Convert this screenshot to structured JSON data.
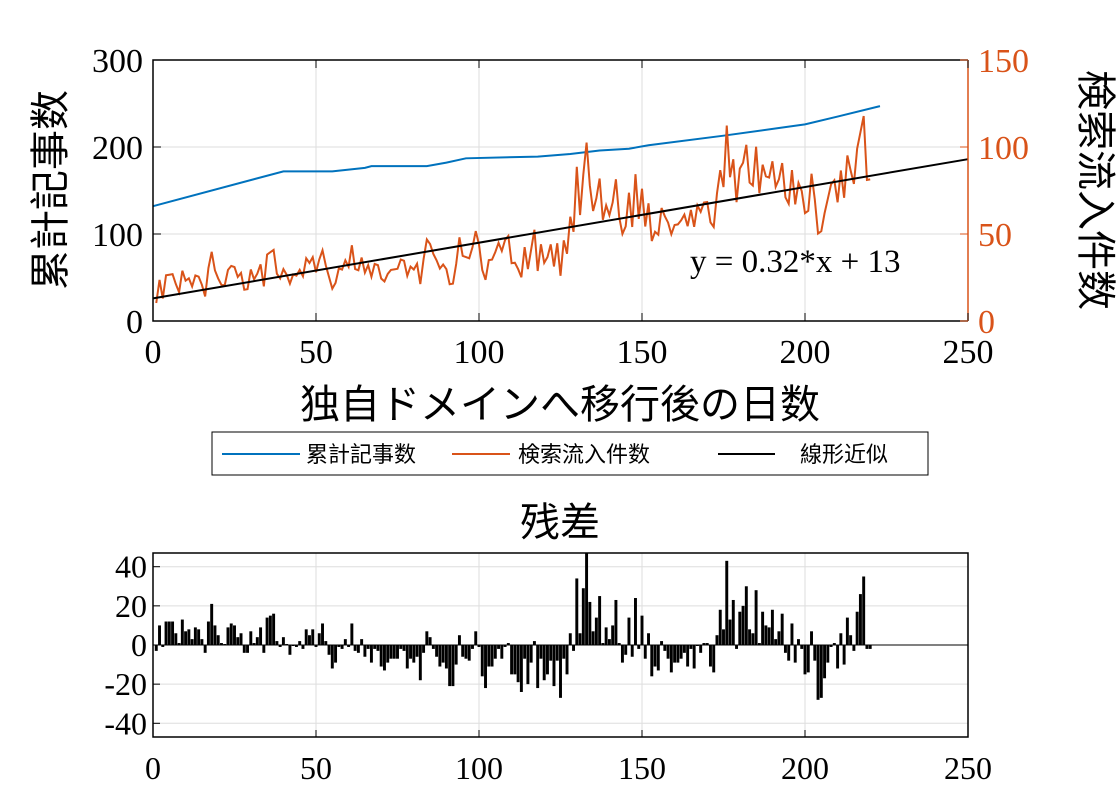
{
  "chart_data": [
    {
      "type": "line",
      "xlabel": "独自ドメインへ移行後の日数",
      "ylabel_left": "累計記事数",
      "ylabel_right": "検索流入件数",
      "xlim": [
        0,
        250
      ],
      "ylim_left": [
        0,
        300
      ],
      "ylim_right": [
        0,
        150
      ],
      "xticks": [
        "0",
        "50",
        "100",
        "150",
        "200",
        "250"
      ],
      "yticks_left": [
        "0",
        "100",
        "200",
        "300"
      ],
      "yticks_right": [
        "0",
        "50",
        "100",
        "150"
      ],
      "grid": true,
      "legend_position": "below",
      "annotation": "y = 0.32*x + 13",
      "fit": {
        "slope": 0.32,
        "intercept": 13
      },
      "colors": {
        "cumulative": "#0072BD",
        "search": "#D95319",
        "fit": "#000000"
      },
      "series": [
        {
          "name": "累計記事数",
          "axis": "left",
          "x": [
            0,
            40,
            55,
            65,
            67,
            84,
            90,
            96,
            118,
            128,
            137,
            146,
            152,
            175,
            200,
            210,
            223
          ],
          "y": [
            132,
            172,
            172,
            176,
            178,
            178,
            182,
            187,
            189,
            192,
            196,
            198,
            202,
            213,
            226,
            235,
            247
          ]
        },
        {
          "name": "検索流入件数",
          "axis": "right",
          "derived_from": "fit + residuals"
        },
        {
          "name": "線形近似",
          "axis": "right",
          "x": [
            0,
            250
          ],
          "y": [
            13,
            93
          ]
        }
      ]
    },
    {
      "type": "bar",
      "title": "残差",
      "xlim": [
        0,
        250
      ],
      "ylim": [
        -47,
        47
      ],
      "xticks": [
        "0",
        "50",
        "100",
        "150",
        "200",
        "250"
      ],
      "yticks": [
        "-40",
        "-20",
        "0",
        "20",
        "40"
      ],
      "grid": true,
      "x_start": 1,
      "values": [
        -3,
        10,
        -1,
        12,
        12,
        12,
        6,
        1,
        13,
        7,
        8,
        3,
        9,
        8,
        3,
        -4,
        12,
        21,
        10,
        5,
        1,
        0.5,
        9,
        11,
        10,
        4,
        6,
        -4,
        -4,
        7,
        1,
        4,
        9,
        -4,
        14,
        15,
        16,
        2,
        -1,
        4,
        0.5,
        -5,
        0,
        -1,
        2,
        -2,
        8,
        5,
        8,
        -1,
        6,
        11,
        2,
        -5,
        -12,
        -9,
        -1,
        -2,
        3,
        -1,
        11,
        -3,
        -4,
        3,
        -6,
        -2,
        -9,
        -2,
        -3,
        -11,
        -13,
        -9,
        -7,
        -7,
        -7,
        -2,
        -3,
        -12,
        -7,
        -9,
        -6,
        -18,
        -4,
        7,
        4,
        -2,
        -6,
        -11,
        -9,
        -12,
        -21,
        -21,
        -10,
        5,
        -6,
        -7,
        -8,
        -2,
        7,
        -1,
        -16,
        -22,
        -11,
        -11,
        -7,
        -2,
        -7,
        -1,
        1,
        -15,
        -15,
        -19,
        -24,
        -7,
        -20,
        -9,
        2,
        -22,
        -7,
        -18,
        -15,
        -8,
        -21,
        -8,
        -27,
        -7,
        -15,
        6,
        -3,
        34,
        6,
        29,
        47,
        22,
        7,
        14,
        25,
        1,
        9,
        3,
        10,
        23,
        1,
        -9,
        -5,
        14,
        -6,
        24,
        -2,
        15,
        -7,
        6,
        -16,
        -11,
        -13,
        2,
        -3,
        -7,
        -14,
        -9,
        -9,
        -7,
        -4,
        -11,
        -2,
        -12,
        0,
        -4,
        1,
        1,
        -11,
        -14,
        5,
        18,
        8,
        43,
        13,
        23,
        -2,
        17,
        20,
        30,
        8,
        6,
        28,
        1,
        17,
        10,
        9,
        18,
        3,
        7,
        16,
        -4,
        -8,
        11,
        -9,
        3,
        -2,
        -15,
        -14,
        7,
        -8,
        -28,
        -27,
        -17,
        -9,
        -1,
        1,
        -12,
        6,
        -10,
        14,
        5,
        -3,
        17,
        26,
        35,
        -2,
        -2
      ]
    }
  ],
  "legend": {
    "items": [
      "累計記事数",
      "検索流入件数",
      "線形近似"
    ]
  }
}
